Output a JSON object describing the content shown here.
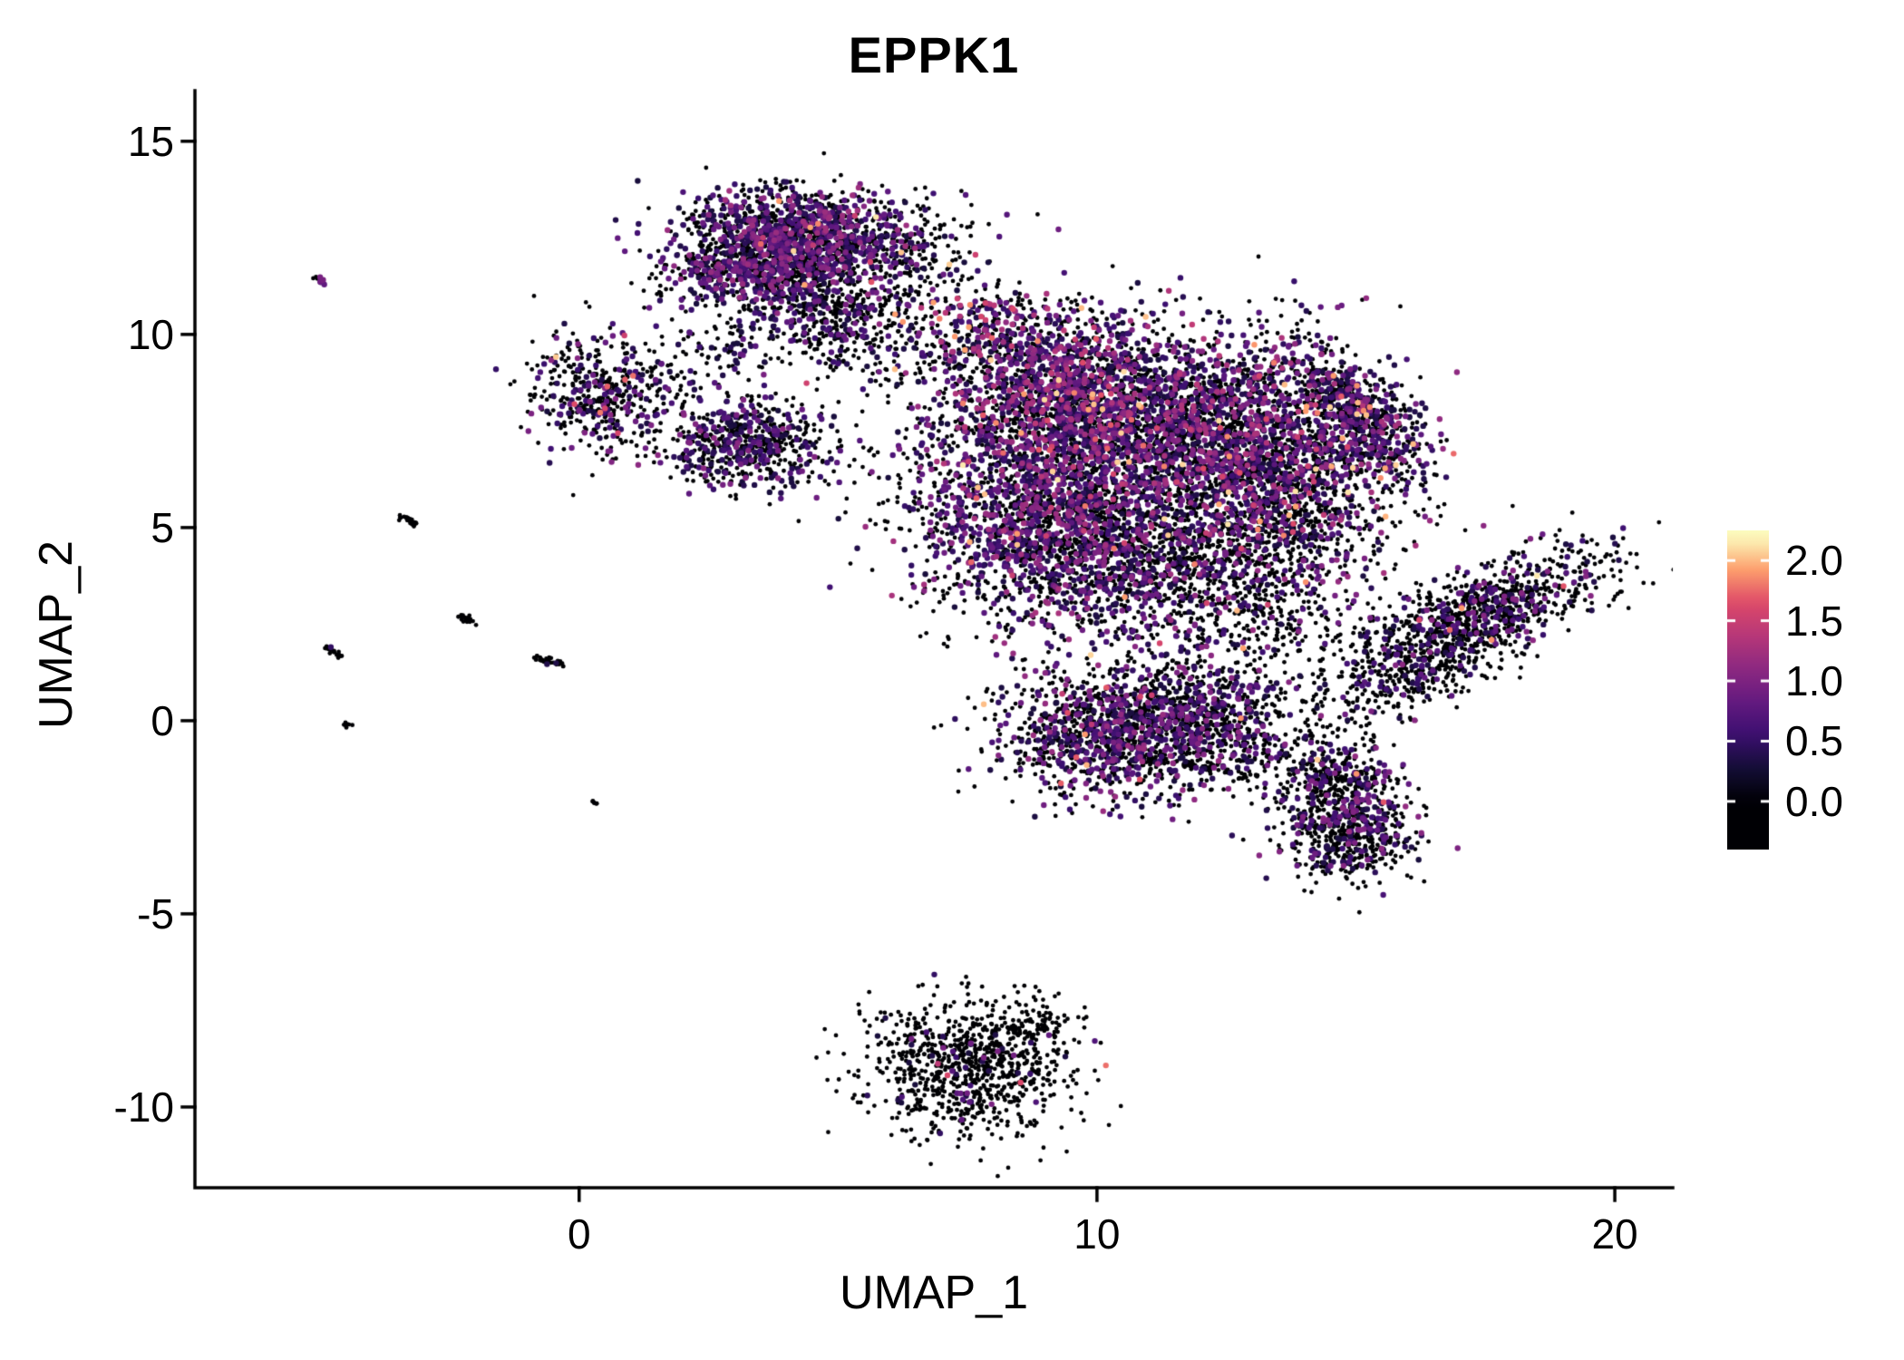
{
  "chart_data": {
    "type": "scatter",
    "title": "EPPK1",
    "xlabel": "UMAP_1",
    "ylabel": "UMAP_2",
    "xlim": [
      -7.42,
      21.12
    ],
    "ylim": [
      -12.09,
      16.31
    ],
    "xticks": [
      0,
      10,
      20
    ],
    "yticks": [
      15,
      10,
      5,
      0,
      -5,
      -10
    ],
    "grid": false,
    "legend_position": "right",
    "colorbar": {
      "ticks": [
        2.0,
        1.5,
        1.0,
        0.5,
        0.0
      ],
      "min": 0.0,
      "max": 2.2,
      "bar_vmin": -0.4,
      "bar_vmax": 2.25,
      "palette": "magma",
      "stops": [
        {
          "t": 0.0,
          "color": "#000004"
        },
        {
          "t": 0.125,
          "color": "#140e36"
        },
        {
          "t": 0.25,
          "color": "#3b0f70"
        },
        {
          "t": 0.375,
          "color": "#641a80"
        },
        {
          "t": 0.5,
          "color": "#8c2981"
        },
        {
          "t": 0.625,
          "color": "#b73779"
        },
        {
          "t": 0.75,
          "color": "#de4968"
        },
        {
          "t": 0.875,
          "color": "#fe9f6d"
        },
        {
          "t": 1.0,
          "color": "#fcfdbf"
        }
      ]
    },
    "seed": 42,
    "clusters": [
      {
        "name": "top-main",
        "n": 1200,
        "cx": 4.3,
        "cy": 12.6,
        "sx": 1.15,
        "sy": 0.58,
        "rot": -5,
        "pos_frac": 0.45,
        "v_lo": 0.3,
        "v_hi": 1.25,
        "hot_frac": 0.01
      },
      {
        "name": "top-left",
        "n": 650,
        "cx": 3.35,
        "cy": 11.65,
        "sx": 0.85,
        "sy": 0.5,
        "rot": 0,
        "pos_frac": 0.45,
        "v_lo": 0.3,
        "v_hi": 1.2,
        "hot_frac": 0.005
      },
      {
        "name": "top-tail",
        "n": 420,
        "cx": 4.9,
        "cy": 10.6,
        "sx": 0.75,
        "sy": 0.7,
        "rot": 0,
        "pos_frac": 0.3,
        "v_lo": 0.3,
        "v_hi": 1.0,
        "hot_frac": 0
      },
      {
        "name": "top-right-sparse",
        "n": 190,
        "cx": 6.4,
        "cy": 11.9,
        "sx": 0.8,
        "sy": 0.85,
        "rot": 0,
        "pos_frac": 0.25,
        "v_lo": 0.3,
        "v_hi": 1.0,
        "hot_frac": 0.01
      },
      {
        "name": "nw-blob",
        "n": 430,
        "cx": 0.3,
        "cy": 8.4,
        "sx": 0.6,
        "sy": 0.78,
        "rot": 10,
        "pos_frac": 0.3,
        "v_lo": 0.3,
        "v_hi": 1.1,
        "hot_frac": 0.015
      },
      {
        "name": "nw-blob2",
        "n": 620,
        "cx": 3.3,
        "cy": 7.2,
        "sx": 0.8,
        "sy": 0.6,
        "rot": 0,
        "pos_frac": 0.35,
        "v_lo": 0.3,
        "v_hi": 1.1,
        "hot_frac": 0.003
      },
      {
        "name": "sparse-nw",
        "n": 80,
        "cx": 1.7,
        "cy": 8.7,
        "sx": 0.7,
        "sy": 0.75,
        "rot": 0,
        "pos_frac": 0.2,
        "v_lo": 0.3,
        "v_hi": 0.9,
        "hot_frac": 0
      },
      {
        "name": "sparse-nw2",
        "n": 60,
        "cx": 2.8,
        "cy": 9.7,
        "sx": 0.5,
        "sy": 0.4,
        "rot": 0,
        "pos_frac": 0.3,
        "v_lo": 0.3,
        "v_hi": 0.9,
        "hot_frac": 0
      },
      {
        "name": "sparse-mid",
        "n": 120,
        "cx": 6.2,
        "cy": 9.6,
        "sx": 1.0,
        "sy": 0.6,
        "rot": 0,
        "pos_frac": 0.25,
        "v_lo": 0.3,
        "v_hi": 1.0,
        "hot_frac": 0.008
      },
      {
        "name": "bridge-top",
        "n": 240,
        "cx": 7.9,
        "cy": 10.2,
        "sx": 0.8,
        "sy": 0.55,
        "rot": 0,
        "pos_frac": 0.4,
        "v_lo": 0.4,
        "v_hi": 1.4,
        "hot_frac": 0.06
      },
      {
        "name": "main-nw",
        "n": 1700,
        "cx": 9.4,
        "cy": 8.4,
        "sx": 1.2,
        "sy": 1.05,
        "rot": 0,
        "pos_frac": 0.5,
        "v_lo": 0.3,
        "v_hi": 1.4,
        "hot_frac": 0.025
      },
      {
        "name": "main-ne",
        "n": 2300,
        "cx": 12.1,
        "cy": 7.5,
        "sx": 1.5,
        "sy": 1.25,
        "rot": 0,
        "pos_frac": 0.45,
        "v_lo": 0.3,
        "v_hi": 1.35,
        "hot_frac": 0.02
      },
      {
        "name": "main-w",
        "n": 1450,
        "cx": 8.9,
        "cy": 5.2,
        "sx": 1.15,
        "sy": 1.1,
        "rot": 0,
        "pos_frac": 0.5,
        "v_lo": 0.3,
        "v_hi": 1.3,
        "hot_frac": 0.01
      },
      {
        "name": "main-s",
        "n": 1450,
        "cx": 11.4,
        "cy": 4.2,
        "sx": 1.5,
        "sy": 1.1,
        "rot": 0,
        "pos_frac": 0.3,
        "v_lo": 0.3,
        "v_hi": 1.2,
        "hot_frac": 0.008
      },
      {
        "name": "main-e",
        "n": 880,
        "cx": 13.9,
        "cy": 5.9,
        "sx": 1.0,
        "sy": 1.2,
        "rot": 0,
        "pos_frac": 0.35,
        "v_lo": 0.3,
        "v_hi": 1.3,
        "hot_frac": 0.01
      },
      {
        "name": "right-arm",
        "n": 650,
        "cx": 15.1,
        "cy": 7.8,
        "sx": 1.0,
        "sy": 0.45,
        "rot": -58,
        "pos_frac": 0.4,
        "v_lo": 0.3,
        "v_hi": 1.3,
        "hot_frac": 0.02
      },
      {
        "name": "bridge-left",
        "n": 120,
        "cx": 6.9,
        "cy": 6.9,
        "sx": 0.85,
        "sy": 1.2,
        "rot": 0,
        "pos_frac": 0.3,
        "v_lo": 0.3,
        "v_hi": 1.0,
        "hot_frac": 0
      },
      {
        "name": "mid-sparse",
        "n": 25,
        "cx": 6.9,
        "cy": 3.8,
        "sx": 0.9,
        "sy": 1.2,
        "rot": 0,
        "pos_frac": 0.1,
        "v_lo": 0.3,
        "v_hi": 0.8,
        "hot_frac": 0
      },
      {
        "name": "right-band",
        "n": 1050,
        "cx": 17.4,
        "cy": 2.7,
        "sx": 1.35,
        "sy": 0.52,
        "rot": 33,
        "pos_frac": 0.22,
        "v_lo": 0.3,
        "v_hi": 1.1,
        "hot_frac": 0.012
      },
      {
        "name": "band-under",
        "n": 220,
        "cx": 15.8,
        "cy": 0.9,
        "sx": 1.0,
        "sy": 0.45,
        "rot": 15,
        "pos_frac": 0.15,
        "v_lo": 0.3,
        "v_hi": 0.9,
        "hot_frac": 0
      },
      {
        "name": "bridge-se",
        "n": 260,
        "cx": 13.4,
        "cy": 2.1,
        "sx": 1.3,
        "sy": 0.8,
        "rot": 0,
        "pos_frac": 0.25,
        "v_lo": 0.3,
        "v_hi": 1.1,
        "hot_frac": 0
      },
      {
        "name": "lower-mid",
        "n": 1250,
        "cx": 10.3,
        "cy": -0.3,
        "sx": 1.1,
        "sy": 0.85,
        "rot": 0,
        "pos_frac": 0.35,
        "v_lo": 0.3,
        "v_hi": 1.2,
        "hot_frac": 0.01
      },
      {
        "name": "lower-mid-e",
        "n": 430,
        "cx": 11.9,
        "cy": 0.2,
        "sx": 0.8,
        "sy": 0.6,
        "rot": 0,
        "pos_frac": 0.3,
        "v_lo": 0.3,
        "v_hi": 1.1,
        "hot_frac": 0
      },
      {
        "name": "bridge-lower",
        "n": 190,
        "cx": 12.8,
        "cy": -0.6,
        "sx": 0.8,
        "sy": 0.6,
        "rot": 0,
        "pos_frac": 0.25,
        "v_lo": 0.3,
        "v_hi": 1.0,
        "hot_frac": 0
      },
      {
        "name": "lower-right",
        "n": 700,
        "cx": 14.7,
        "cy": -2.0,
        "sx": 0.62,
        "sy": 0.92,
        "rot": 10,
        "pos_frac": 0.3,
        "v_lo": 0.3,
        "v_hi": 1.2,
        "hot_frac": 0.005
      },
      {
        "name": "lower-right-tail",
        "n": 230,
        "cx": 14.9,
        "cy": -3.2,
        "sx": 0.55,
        "sy": 0.45,
        "rot": 0,
        "pos_frac": 0.2,
        "v_lo": 0.3,
        "v_hi": 1.0,
        "hot_frac": 0
      },
      {
        "name": "thin-line",
        "n": 60,
        "cx": 12.0,
        "cy": -1.2,
        "shape": "streak",
        "len": 2.4,
        "rot": -12,
        "pos_frac": 0.05,
        "v_lo": 0.3,
        "v_hi": 0.7,
        "hot_frac": 0
      },
      {
        "name": "bottom-main",
        "n": 880,
        "cx": 7.5,
        "cy": -9.0,
        "sx": 1.0,
        "sy": 0.9,
        "rot": -8,
        "pos_frac": 0.05,
        "v_lo": 0.3,
        "v_hi": 1.0,
        "hot_frac": 0.004
      },
      {
        "name": "bottom-tip",
        "n": 70,
        "cx": 8.8,
        "cy": -7.8,
        "sx": 0.5,
        "sy": 0.3,
        "rot": 20,
        "pos_frac": 0.05,
        "v_lo": 0.3,
        "v_hi": 0.8,
        "hot_frac": 0
      },
      {
        "name": "streak-a",
        "n": 10,
        "cx": -5.0,
        "cy": 11.4,
        "shape": "streak",
        "len": 0.28,
        "rot": -40,
        "pos_frac": 0.7,
        "v_lo": 0.5,
        "v_hi": 1.0,
        "hot_frac": 0
      },
      {
        "name": "streak-b",
        "n": 26,
        "cx": -3.3,
        "cy": 5.2,
        "shape": "streak",
        "len": 0.5,
        "rot": -40,
        "pos_frac": 0.05,
        "v_lo": 0.3,
        "v_hi": 0.6,
        "hot_frac": 0
      },
      {
        "name": "streak-c",
        "n": 18,
        "cx": -2.15,
        "cy": 2.6,
        "shape": "streak",
        "len": 0.4,
        "rot": -40,
        "pos_frac": 0.05,
        "v_lo": 0.3,
        "v_hi": 0.6,
        "hot_frac": 0
      },
      {
        "name": "streak-d",
        "n": 20,
        "cx": -4.75,
        "cy": 1.8,
        "shape": "streak",
        "len": 0.42,
        "rot": -40,
        "pos_frac": 0.05,
        "v_lo": 0.3,
        "v_hi": 0.6,
        "hot_frac": 0
      },
      {
        "name": "streak-e",
        "n": 30,
        "cx": -0.6,
        "cy": 1.55,
        "shape": "streak",
        "len": 0.65,
        "rot": -20,
        "pos_frac": 0.05,
        "v_lo": 0.3,
        "v_hi": 0.6,
        "hot_frac": 0
      },
      {
        "name": "dot-f",
        "n": 7,
        "cx": -4.45,
        "cy": -0.1,
        "shape": "streak",
        "len": 0.18,
        "rot": -40,
        "pos_frac": 0,
        "v_lo": 0.3,
        "v_hi": 0.5,
        "hot_frac": 0
      },
      {
        "name": "dot-g",
        "n": 6,
        "cx": 0.3,
        "cy": -2.1,
        "shape": "streak",
        "len": 0.12,
        "rot": -40,
        "pos_frac": 0,
        "v_lo": 0.3,
        "v_hi": 0.5,
        "hot_frac": 0
      }
    ]
  }
}
